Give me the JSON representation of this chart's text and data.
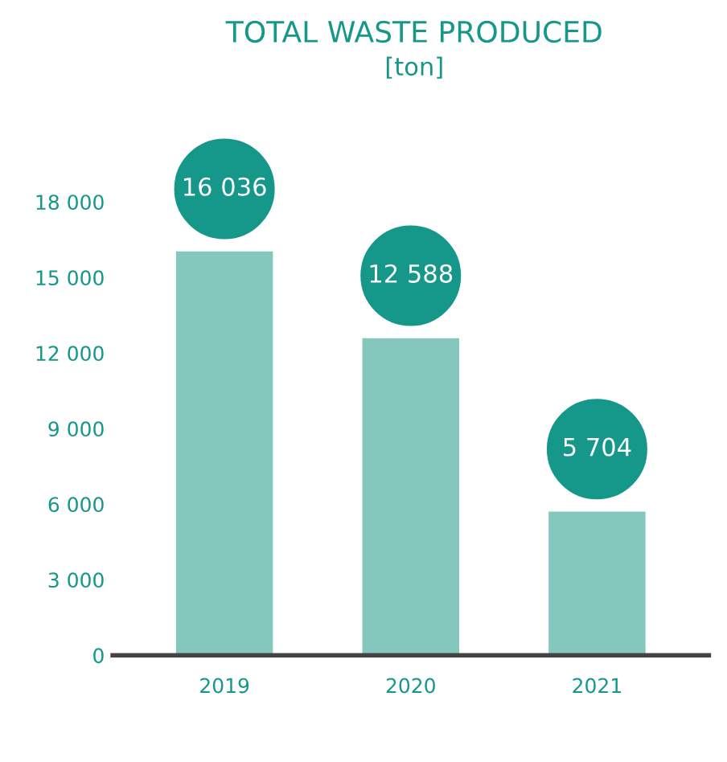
{
  "chart_data": {
    "type": "bar",
    "title": "TOTAL WASTE PRODUCED",
    "subtitle": "[ton]",
    "categories": [
      "2019",
      "2020",
      "2021"
    ],
    "series": [
      {
        "color": "#84c7bc",
        "values": [
          16036,
          12588,
          5704
        ]
      }
    ],
    "value_labels": [
      "16 036",
      "12 588",
      "5 704"
    ],
    "ylim": [
      0,
      18000
    ],
    "yticks": [
      {
        "value": 0,
        "label": "0"
      },
      {
        "value": 3000,
        "label": "3 000"
      },
      {
        "value": 6000,
        "label": "6 000"
      },
      {
        "value": 9000,
        "label": "9 000"
      },
      {
        "value": 12000,
        "label": "12 000"
      },
      {
        "value": 15000,
        "label": "15 000"
      },
      {
        "value": 18000,
        "label": "18 000"
      }
    ],
    "grid": false,
    "legend": false
  }
}
